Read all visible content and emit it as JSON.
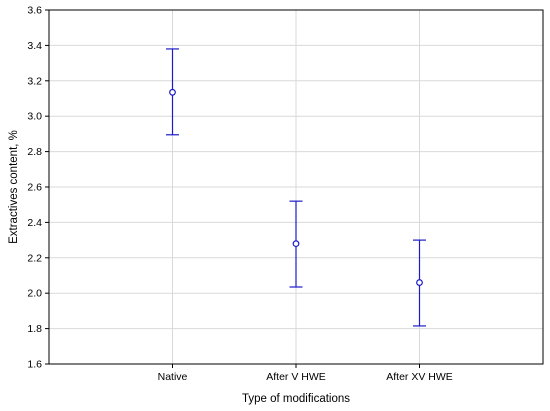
{
  "chart_data": {
    "type": "scatter",
    "subtype": "mean-with-error-bars",
    "title": "",
    "xlabel": "Type of modifications",
    "ylabel": "Extractives content, %",
    "categories": [
      "Native",
      "After V HWE",
      "After XV HWE"
    ],
    "means": [
      3.135,
      2.28,
      2.06
    ],
    "lower": [
      2.895,
      2.035,
      1.815
    ],
    "upper": [
      3.38,
      2.52,
      2.3
    ],
    "ylim": [
      1.6,
      3.6
    ],
    "yticks": [
      "1.6",
      "1.8",
      "2.0",
      "2.2",
      "2.4",
      "2.6",
      "2.8",
      "3.0",
      "3.2",
      "3.4",
      "3.6"
    ],
    "grid": true,
    "legend": "none",
    "colors": {
      "series": "#1c1cc8",
      "grid": "#d9d9d9",
      "axis": "#000000"
    }
  }
}
